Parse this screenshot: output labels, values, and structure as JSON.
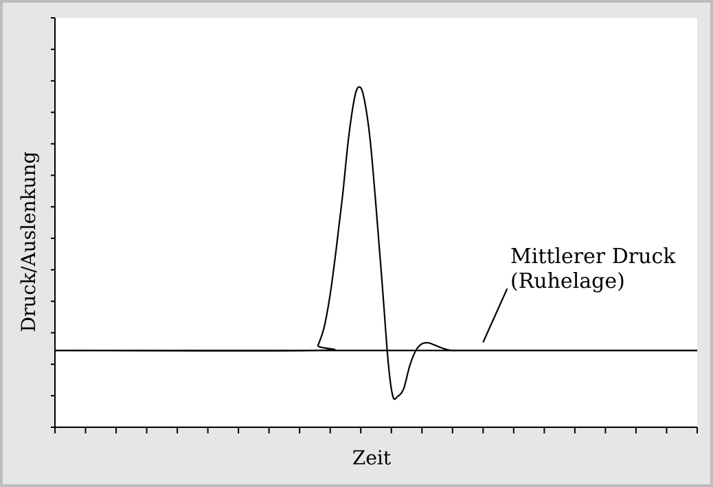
{
  "chart_data": {
    "type": "line",
    "title": "",
    "xlabel": "Zeit",
    "ylabel": "Druck/Auslenkung",
    "xlim": [
      0,
      21
    ],
    "ylim": [
      -3,
      13
    ],
    "x_tick_count": 22,
    "y_tick_count": 14,
    "grid": false,
    "baseline": 0,
    "series": [
      {
        "values_x": [
          0,
          8.5,
          8.6,
          8.8,
          9.0,
          9.2,
          9.4,
          9.6,
          9.8,
          9.95,
          10.1,
          10.3,
          10.5,
          10.7,
          10.9,
          11.05,
          11.2,
          11.4,
          11.6,
          11.8,
          12.0,
          12.2,
          12.4,
          12.6,
          12.8,
          13.0,
          13.2,
          13.5,
          14.0,
          15.0,
          21.0
        ],
        "values_y": [
          0,
          0,
          0.2,
          0.9,
          2.2,
          4.0,
          6.0,
          8.3,
          9.9,
          10.3,
          9.9,
          8.3,
          5.6,
          2.6,
          -0.5,
          -1.8,
          -1.8,
          -1.5,
          -0.6,
          0.0,
          0.26,
          0.3,
          0.22,
          0.12,
          0.04,
          0.0,
          0.0,
          0.0,
          0.0,
          0.0,
          0.0
        ]
      }
    ],
    "annotations": [
      {
        "text_line1": "Mittlerer Druck",
        "text_line2": "(Ruhelage)",
        "points_to": 14.0
      }
    ]
  }
}
